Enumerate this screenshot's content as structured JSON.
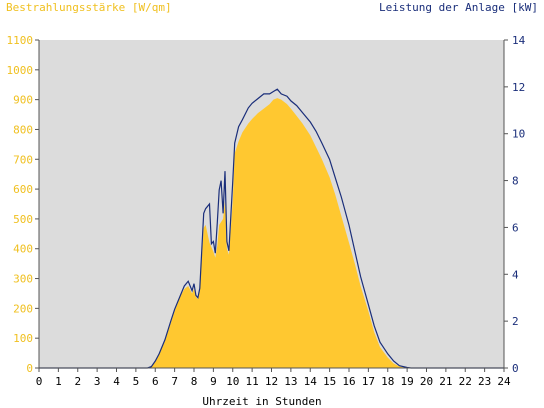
{
  "chart_data": {
    "type": "area",
    "left_axis_title": "Bestrahlungsstärke [W/qm]",
    "right_axis_title": "Leistung der Anlage [kW]",
    "xlabel": "Uhrzeit in Stunden",
    "x_ticks": [
      "0",
      "1",
      "2",
      "3",
      "4",
      "5",
      "6",
      "7",
      "8",
      "9",
      "10",
      "11",
      "12",
      "13",
      "14",
      "15",
      "16",
      "17",
      "18",
      "19",
      "20",
      "21",
      "22",
      "23",
      "24"
    ],
    "xlim": [
      0,
      24
    ],
    "ylim_left": [
      0,
      1100
    ],
    "ylim_right": [
      0,
      14
    ],
    "y_ticks_left": [
      "0",
      "100",
      "200",
      "300",
      "400",
      "500",
      "600",
      "700",
      "800",
      "900",
      "1000",
      "1100"
    ],
    "y_ticks_right": [
      "0",
      "2",
      "4",
      "6",
      "8",
      "10",
      "12",
      "14"
    ],
    "grid": false,
    "colors": {
      "plot_background": "#dcdcdc",
      "irradiance_fill": "#ffc830",
      "power_line": "#1a2e7a",
      "left_axis_text": "#f0c020",
      "right_axis_text": "#1a2e7a",
      "axis_text": "#000000"
    },
    "series": [
      {
        "name": "Bestrahlungsstärke [W/qm]",
        "axis": "left",
        "style": "area",
        "x": [
          0,
          5.6,
          5.8,
          6.0,
          6.2,
          6.5,
          6.8,
          7.0,
          7.3,
          7.5,
          7.7,
          7.9,
          8.0,
          8.1,
          8.2,
          8.3,
          8.5,
          8.6,
          8.8,
          9.0,
          9.1,
          9.2,
          9.3,
          9.5,
          9.6,
          9.7,
          9.8,
          10.0,
          10.1,
          10.3,
          10.5,
          10.8,
          11.0,
          11.3,
          11.6,
          11.9,
          12.1,
          12.3,
          12.5,
          12.8,
          13.0,
          13.3,
          13.6,
          14.0,
          14.3,
          14.6,
          15.0,
          15.3,
          15.6,
          16.0,
          16.3,
          16.6,
          17.0,
          17.3,
          17.6,
          18.0,
          18.3,
          18.6,
          19.0,
          19.2,
          19.5,
          24
        ],
        "y": [
          0,
          0,
          5,
          20,
          45,
          90,
          150,
          190,
          240,
          265,
          275,
          250,
          265,
          240,
          230,
          260,
          470,
          480,
          420,
          390,
          370,
          410,
          480,
          500,
          560,
          400,
          380,
          560,
          720,
          760,
          790,
          820,
          835,
          855,
          870,
          885,
          900,
          905,
          900,
          885,
          870,
          845,
          820,
          780,
          740,
          700,
          640,
          580,
          510,
          420,
          350,
          275,
          190,
          120,
          70,
          35,
          15,
          5,
          0,
          0,
          0,
          0
        ]
      },
      {
        "name": "Leistung der Anlage [kW]",
        "axis": "right",
        "style": "line",
        "x": [
          0,
          5.6,
          5.8,
          6.0,
          6.2,
          6.5,
          6.8,
          7.0,
          7.3,
          7.5,
          7.7,
          7.9,
          8.0,
          8.1,
          8.2,
          8.3,
          8.5,
          8.6,
          8.8,
          8.9,
          9.0,
          9.1,
          9.2,
          9.3,
          9.4,
          9.5,
          9.6,
          9.7,
          9.8,
          10.0,
          10.1,
          10.3,
          10.5,
          10.8,
          11.0,
          11.3,
          11.6,
          11.9,
          12.1,
          12.3,
          12.5,
          12.8,
          13.0,
          13.3,
          13.6,
          14.0,
          14.3,
          14.6,
          15.0,
          15.3,
          15.6,
          16.0,
          16.3,
          16.6,
          17.0,
          17.3,
          17.6,
          18.0,
          18.3,
          18.6,
          19.0,
          19.2,
          19.5,
          24
        ],
        "y": [
          0,
          0,
          0.06,
          0.3,
          0.6,
          1.2,
          2.0,
          2.5,
          3.1,
          3.5,
          3.7,
          3.3,
          3.6,
          3.1,
          3.0,
          3.4,
          6.6,
          6.8,
          7.0,
          5.3,
          5.4,
          4.9,
          6.2,
          7.6,
          8.0,
          6.6,
          8.4,
          5.4,
          5.0,
          8.0,
          9.6,
          10.3,
          10.6,
          11.1,
          11.3,
          11.5,
          11.7,
          11.7,
          11.8,
          11.9,
          11.7,
          11.6,
          11.4,
          11.2,
          10.9,
          10.5,
          10.1,
          9.6,
          8.9,
          8.1,
          7.3,
          6.1,
          5.0,
          3.9,
          2.7,
          1.8,
          1.1,
          0.6,
          0.3,
          0.1,
          0.02,
          0,
          0,
          0
        ]
      }
    ]
  }
}
